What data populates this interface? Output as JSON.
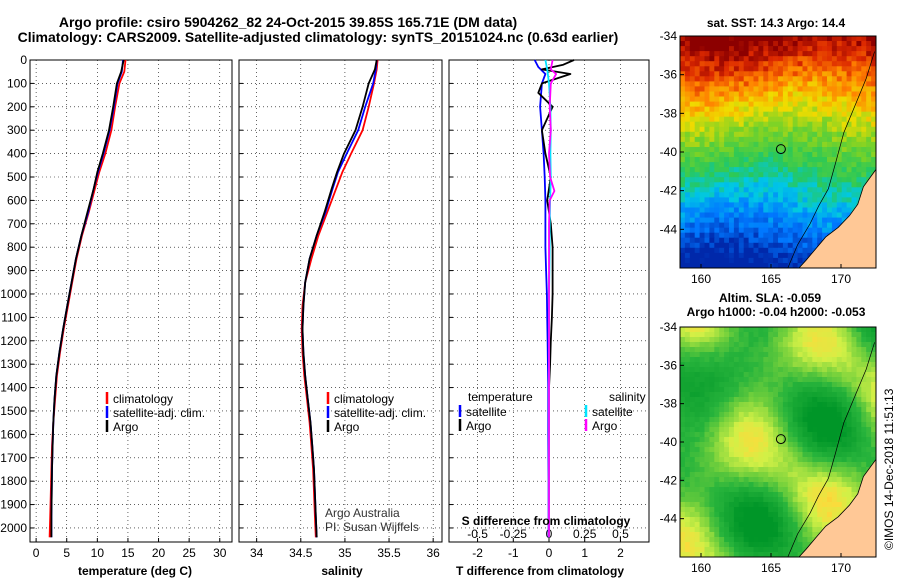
{
  "header": {
    "line1": "Argo profile: csiro 5904262_82 24-Oct-2015 39.85S 165.71E (DM data)",
    "line2": "Climatology: CARS2009. Satellite-adjusted climatology: synTS_20151024.nc (0.63d earlier)"
  },
  "colors": {
    "climatology": "#ff0000",
    "satellite": "#0000ff",
    "argo": "#000000",
    "sat_salinity": "#00e5ff",
    "argo_salinity": "#ff00ff",
    "land": "#ffc896"
  },
  "depth_axis": {
    "ylim": [
      2060,
      0
    ],
    "ticks": [
      "0",
      "100",
      "200",
      "300",
      "400",
      "500",
      "600",
      "700",
      "800",
      "900",
      "1000",
      "1100",
      "1200",
      "1300",
      "1400",
      "1500",
      "1600",
      "1700",
      "1800",
      "1900",
      "2000"
    ]
  },
  "chart_data": [
    {
      "id": "temperature",
      "type": "line",
      "xlabel": "temperature (deg C)",
      "xlim": [
        -1,
        32
      ],
      "xticks": [
        "0",
        "5",
        "10",
        "15",
        "20",
        "25",
        "30"
      ],
      "legend": [
        "climatology",
        "satellite-adj. clim.",
        "Argo"
      ],
      "series": [
        {
          "name": "climatology",
          "color": "#ff0000",
          "points": [
            [
              14.6,
              0
            ],
            [
              14.4,
              50
            ],
            [
              13.6,
              100
            ],
            [
              12.9,
              200
            ],
            [
              12.3,
              300
            ],
            [
              11.3,
              400
            ],
            [
              10.3,
              480
            ],
            [
              9.6,
              550
            ],
            [
              8.6,
              650
            ],
            [
              7.5,
              750
            ],
            [
              6.6,
              850
            ],
            [
              5.9,
              950
            ],
            [
              5.2,
              1050
            ],
            [
              4.5,
              1150
            ],
            [
              3.9,
              1250
            ],
            [
              3.4,
              1350
            ],
            [
              3.1,
              1450
            ],
            [
              2.8,
              1550
            ],
            [
              2.6,
              1650
            ],
            [
              2.5,
              1750
            ],
            [
              2.4,
              1850
            ],
            [
              2.3,
              1950
            ],
            [
              2.2,
              2040
            ]
          ]
        },
        {
          "name": "satellite-adj. clim.",
          "color": "#0000ff",
          "points": [
            [
              14.2,
              0
            ],
            [
              14.0,
              50
            ],
            [
              13.3,
              100
            ],
            [
              12.7,
              200
            ],
            [
              12.0,
              300
            ],
            [
              11.0,
              400
            ],
            [
              10.1,
              480
            ],
            [
              9.4,
              550
            ],
            [
              8.5,
              650
            ],
            [
              7.4,
              750
            ],
            [
              6.5,
              850
            ],
            [
              5.8,
              950
            ],
            [
              5.1,
              1050
            ],
            [
              4.4,
              1150
            ],
            [
              3.8,
              1250
            ],
            [
              3.3,
              1350
            ],
            [
              3.0,
              1450
            ],
            [
              2.8,
              1550
            ],
            [
              2.7,
              1650
            ],
            [
              2.6,
              1750
            ],
            [
              2.55,
              1850
            ],
            [
              2.5,
              1950
            ],
            [
              2.5,
              2040
            ]
          ]
        },
        {
          "name": "Argo",
          "color": "#000000",
          "points": [
            [
              14.3,
              0
            ],
            [
              13.9,
              50
            ],
            [
              13.2,
              100
            ],
            [
              12.6,
              200
            ],
            [
              11.9,
              300
            ],
            [
              10.9,
              400
            ],
            [
              10.0,
              480
            ],
            [
              9.4,
              550
            ],
            [
              8.4,
              650
            ],
            [
              7.4,
              750
            ],
            [
              6.5,
              850
            ],
            [
              5.8,
              950
            ],
            [
              5.1,
              1050
            ],
            [
              4.4,
              1150
            ],
            [
              3.8,
              1250
            ],
            [
              3.3,
              1350
            ],
            [
              3.0,
              1450
            ],
            [
              2.8,
              1550
            ],
            [
              2.7,
              1650
            ],
            [
              2.6,
              1750
            ],
            [
              2.55,
              1850
            ],
            [
              2.5,
              1950
            ],
            [
              2.5,
              2040
            ]
          ]
        }
      ]
    },
    {
      "id": "salinity",
      "type": "line",
      "xlabel": "salinity",
      "xlim": [
        33.8,
        36.1
      ],
      "xticks": [
        "34",
        "34.5",
        "35",
        "35.5",
        "36"
      ],
      "legend": [
        "climatology",
        "satellite-adj. clim.",
        "Argo"
      ],
      "annotation": [
        "Argo Australia",
        "PI: Susan Wijffels"
      ],
      "series": [
        {
          "name": "climatology",
          "color": "#ff0000",
          "points": [
            [
              35.37,
              0
            ],
            [
              35.36,
              40
            ],
            [
              35.33,
              100
            ],
            [
              35.27,
              200
            ],
            [
              35.2,
              300
            ],
            [
              35.07,
              400
            ],
            [
              34.97,
              480
            ],
            [
              34.9,
              550
            ],
            [
              34.8,
              650
            ],
            [
              34.7,
              750
            ],
            [
              34.62,
              850
            ],
            [
              34.55,
              950
            ],
            [
              34.52,
              1050
            ],
            [
              34.51,
              1150
            ],
            [
              34.52,
              1250
            ],
            [
              34.54,
              1350
            ],
            [
              34.57,
              1450
            ],
            [
              34.6,
              1550
            ],
            [
              34.62,
              1650
            ],
            [
              34.64,
              1750
            ],
            [
              34.65,
              1850
            ],
            [
              34.66,
              1950
            ],
            [
              34.67,
              2040
            ]
          ]
        },
        {
          "name": "satellite-adj. clim.",
          "color": "#0000ff",
          "points": [
            [
              35.36,
              0
            ],
            [
              35.35,
              40
            ],
            [
              35.32,
              100
            ],
            [
              35.23,
              200
            ],
            [
              35.15,
              300
            ],
            [
              35.02,
              400
            ],
            [
              34.92,
              480
            ],
            [
              34.86,
              550
            ],
            [
              34.78,
              650
            ],
            [
              34.68,
              750
            ],
            [
              34.6,
              850
            ],
            [
              34.55,
              950
            ],
            [
              34.53,
              1050
            ],
            [
              34.52,
              1150
            ],
            [
              34.53,
              1250
            ],
            [
              34.55,
              1350
            ],
            [
              34.58,
              1450
            ],
            [
              34.61,
              1550
            ],
            [
              34.63,
              1650
            ],
            [
              34.65,
              1750
            ],
            [
              34.66,
              1850
            ],
            [
              34.67,
              1950
            ],
            [
              34.68,
              2040
            ]
          ]
        },
        {
          "name": "Argo",
          "color": "#000000",
          "points": [
            [
              35.36,
              0
            ],
            [
              35.34,
              40
            ],
            [
              35.27,
              100
            ],
            [
              35.2,
              200
            ],
            [
              35.12,
              300
            ],
            [
              34.99,
              400
            ],
            [
              34.91,
              480
            ],
            [
              34.85,
              550
            ],
            [
              34.77,
              650
            ],
            [
              34.68,
              750
            ],
            [
              34.6,
              850
            ],
            [
              34.55,
              950
            ],
            [
              34.53,
              1050
            ],
            [
              34.52,
              1150
            ],
            [
              34.53,
              1250
            ],
            [
              34.55,
              1350
            ],
            [
              34.58,
              1450
            ],
            [
              34.61,
              1550
            ],
            [
              34.63,
              1650
            ],
            [
              34.65,
              1750
            ],
            [
              34.66,
              1850
            ],
            [
              34.67,
              1950
            ],
            [
              34.68,
              2040
            ]
          ]
        }
      ]
    },
    {
      "id": "difference",
      "type": "line",
      "xlabel": "T difference from climatology",
      "xlim": [
        -2.8,
        2.8
      ],
      "xticks": [
        "-2",
        "-1",
        "0",
        "1",
        "2"
      ],
      "x2label": "S difference from climatology",
      "x2ticks": [
        "-0.5",
        "-0.25",
        "0",
        "0.25",
        "0.5"
      ],
      "legend_t_title": "temperature",
      "legend_s_title": "salinity",
      "legend_t": [
        "satellite",
        "Argo"
      ],
      "legend_s": [
        "satellite",
        "Argo"
      ],
      "series": [
        {
          "name": "T satellite",
          "color": "#0000ff",
          "points": [
            [
              -0.4,
              0
            ],
            [
              -0.3,
              30
            ],
            [
              -0.1,
              60
            ],
            [
              -0.2,
              100
            ],
            [
              -0.25,
              200
            ],
            [
              -0.2,
              300
            ],
            [
              -0.15,
              400
            ],
            [
              -0.12,
              500
            ],
            [
              -0.1,
              600
            ],
            [
              -0.1,
              700
            ],
            [
              -0.1,
              800
            ],
            [
              -0.08,
              900
            ],
            [
              -0.06,
              1000
            ],
            [
              -0.05,
              1100
            ],
            [
              -0.04,
              1200
            ],
            [
              -0.03,
              1300
            ],
            [
              -0.02,
              1400
            ],
            [
              -0.02,
              1600
            ],
            [
              -0.01,
              1800
            ],
            [
              -0.01,
              2040
            ]
          ]
        },
        {
          "name": "T Argo",
          "color": "#000000",
          "points": [
            [
              0.7,
              0
            ],
            [
              0.4,
              20
            ],
            [
              -0.2,
              40
            ],
            [
              0.6,
              60
            ],
            [
              -0.2,
              100
            ],
            [
              -0.3,
              140
            ],
            [
              0.1,
              200
            ],
            [
              -0.2,
              300
            ],
            [
              -0.1,
              400
            ],
            [
              0.05,
              500
            ],
            [
              -0.05,
              600
            ],
            [
              0.05,
              700
            ],
            [
              0.1,
              800
            ],
            [
              0.1,
              900
            ],
            [
              0.1,
              1000
            ],
            [
              0.08,
              1100
            ],
            [
              0.05,
              1200
            ],
            [
              0.03,
              1300
            ],
            [
              0.0,
              1400
            ],
            [
              0.0,
              1600
            ],
            [
              0.0,
              1800
            ],
            [
              0.0,
              2040
            ]
          ]
        },
        {
          "name": "S satellite",
          "color": "#00e5ff",
          "points": [
            [
              -0.1,
              0
            ],
            [
              -0.05,
              40
            ],
            [
              0.0,
              100
            ],
            [
              0.04,
              200
            ],
            [
              0.05,
              300
            ],
            [
              0.04,
              400
            ],
            [
              0.05,
              500
            ],
            [
              0.03,
              600
            ],
            [
              0.02,
              700
            ],
            [
              0.02,
              800
            ],
            [
              0.01,
              900
            ],
            [
              0.0,
              1000
            ],
            [
              0.0,
              1100
            ],
            [
              0.0,
              1200
            ],
            [
              0.0,
              1400
            ],
            [
              0.0,
              1600
            ],
            [
              0.0,
              1800
            ],
            [
              0.0,
              2040
            ]
          ]
        },
        {
          "name": "S Argo",
          "color": "#ff00ff",
          "points": [
            [
              0.1,
              0
            ],
            [
              0.05,
              40
            ],
            [
              0.2,
              60
            ],
            [
              0.05,
              100
            ],
            [
              0.02,
              200
            ],
            [
              0.05,
              300
            ],
            [
              0.0,
              400
            ],
            [
              0.03,
              500
            ],
            [
              0.15,
              560
            ],
            [
              0.02,
              600
            ],
            [
              0.0,
              700
            ],
            [
              0.0,
              800
            ],
            [
              0.0,
              900
            ],
            [
              0.0,
              1000
            ],
            [
              0.0,
              1200
            ],
            [
              0.0,
              1400
            ],
            [
              0.0,
              1600
            ],
            [
              0.0,
              1800
            ],
            [
              0.0,
              2040
            ]
          ]
        }
      ]
    },
    {
      "id": "sst_map",
      "type": "heatmap",
      "title": "sat. SST: 14.3 Argo: 14.4",
      "xlim": [
        158.5,
        172.5
      ],
      "ylim": [
        -46,
        -34
      ],
      "xticks": [
        "160",
        "165",
        "170"
      ],
      "yticks": [
        "-34",
        "-36",
        "-38",
        "-40",
        "-42",
        "-44"
      ],
      "marker": {
        "lon": 165.71,
        "lat": -39.85
      }
    },
    {
      "id": "sla_map",
      "type": "heatmap",
      "title": "Altim. SLA: -0.059",
      "subtitle": "Argo h1000: -0.04 h2000: -0.053",
      "xlim": [
        158.5,
        172.5
      ],
      "ylim": [
        -46,
        -34
      ],
      "xticks": [
        "160",
        "165",
        "170"
      ],
      "yticks": [
        "-34",
        "-36",
        "-38",
        "-40",
        "-42",
        "-44"
      ],
      "marker": {
        "lon": 165.71,
        "lat": -39.85
      }
    }
  ],
  "footer": {
    "credit": "©IMOS 14-Dec-2018 11:51:13"
  }
}
